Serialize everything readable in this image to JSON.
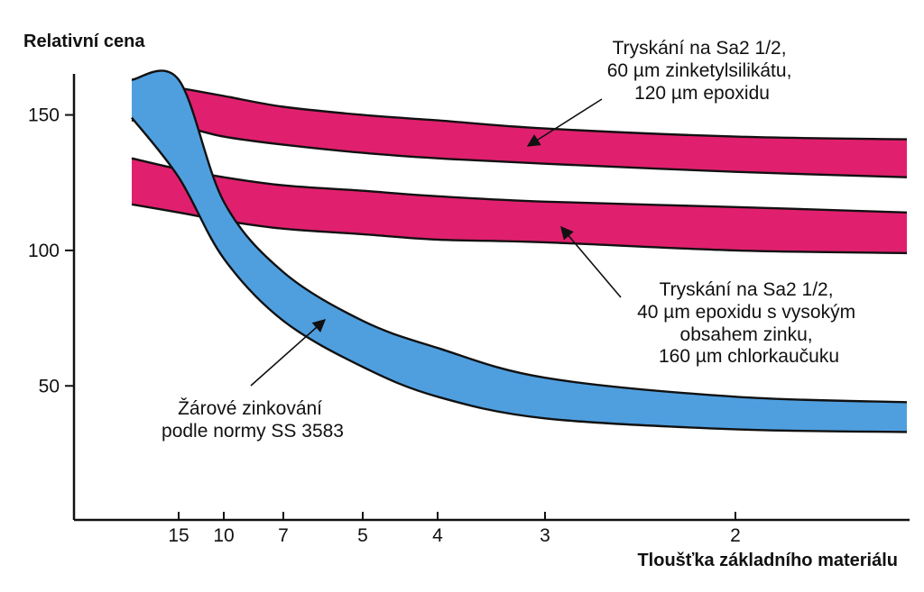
{
  "chart_data": {
    "type": "area",
    "ylabel": "Relativní cena",
    "xlabel": "Tloušťka základního materiálu",
    "x_ticks": [
      "15",
      "10",
      "7",
      "5",
      "4",
      "3",
      "2"
    ],
    "y_ticks": [
      50,
      100,
      150
    ],
    "ylim": [
      0,
      165
    ],
    "grid": false,
    "series": [
      {
        "name": "Tryskání na Sa2 1/2, 60 µm zinketylsilikátu, 120 µm epoxidu",
        "color": "#e0206e",
        "x": [
          18,
          15,
          10,
          7,
          5,
          4,
          3,
          2,
          1.4
        ],
        "upper": [
          163,
          160,
          157,
          153,
          150,
          148,
          145,
          142,
          141
        ],
        "lower": [
          148,
          146,
          142,
          139,
          136,
          134,
          132,
          129,
          127
        ]
      },
      {
        "name": "Tryskání na Sa2 1/2, 40 µm epoxidu s vysokým obsahem zinku, 160 µm chlorkaučuku",
        "color": "#e0206e",
        "x": [
          18,
          15,
          10,
          7,
          5,
          4,
          3,
          2,
          1.4
        ],
        "upper": [
          134,
          130,
          127,
          124,
          122,
          120,
          118,
          116,
          114
        ],
        "lower": [
          117,
          114,
          111,
          108,
          106,
          104,
          103,
          100,
          99
        ]
      },
      {
        "name": "Žárové zinkování podle normy SS 3583",
        "color": "#4f9fdf",
        "x": [
          18,
          15,
          10,
          7,
          5,
          4,
          3,
          2,
          1.4
        ],
        "upper": [
          163,
          163,
          118,
          92,
          74,
          64,
          53,
          46,
          44
        ],
        "lower": [
          149,
          127,
          97,
          74,
          57,
          46,
          38,
          34,
          33
        ]
      }
    ],
    "annotations": [
      {
        "lines": [
          "Tryskání na Sa2 1/2,",
          "60 µm zinketylsilikátu,",
          "120 µm epoxidu"
        ]
      },
      {
        "lines": [
          "Tryskání na Sa2 1/2,",
          "40 µm epoxidu s vysokým",
          "obsahem zinku,",
          "160 µm chlorkaučuku"
        ]
      },
      {
        "lines": [
          "Žárové zinkování",
          "podle normy SS 3583"
        ]
      }
    ]
  }
}
